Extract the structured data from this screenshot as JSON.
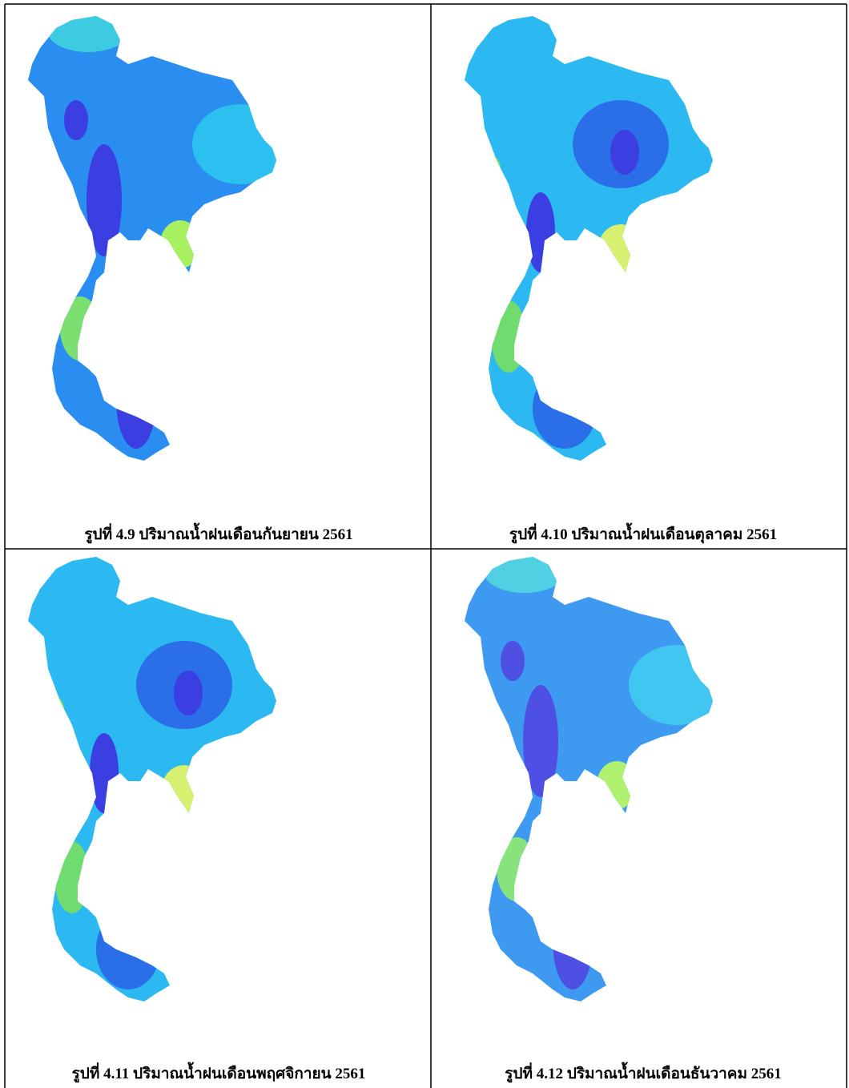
{
  "figures": [
    {
      "caption": "รูปที่ 4.9 ปริมาณน้ำฝนเดือนกันยายน 2561"
    },
    {
      "caption": "รูปที่ 4.10 ปริมาณน้ำฝนเดือนตุลาคม 2561"
    },
    {
      "caption": "รูปที่ 4.11 ปริมาณน้ำฝนเดือนพฤศจิกายน 2561"
    },
    {
      "caption": "รูปที่ 4.12 ปริมาณน้ำฝนเดือนธันวาคม 2561"
    }
  ]
}
